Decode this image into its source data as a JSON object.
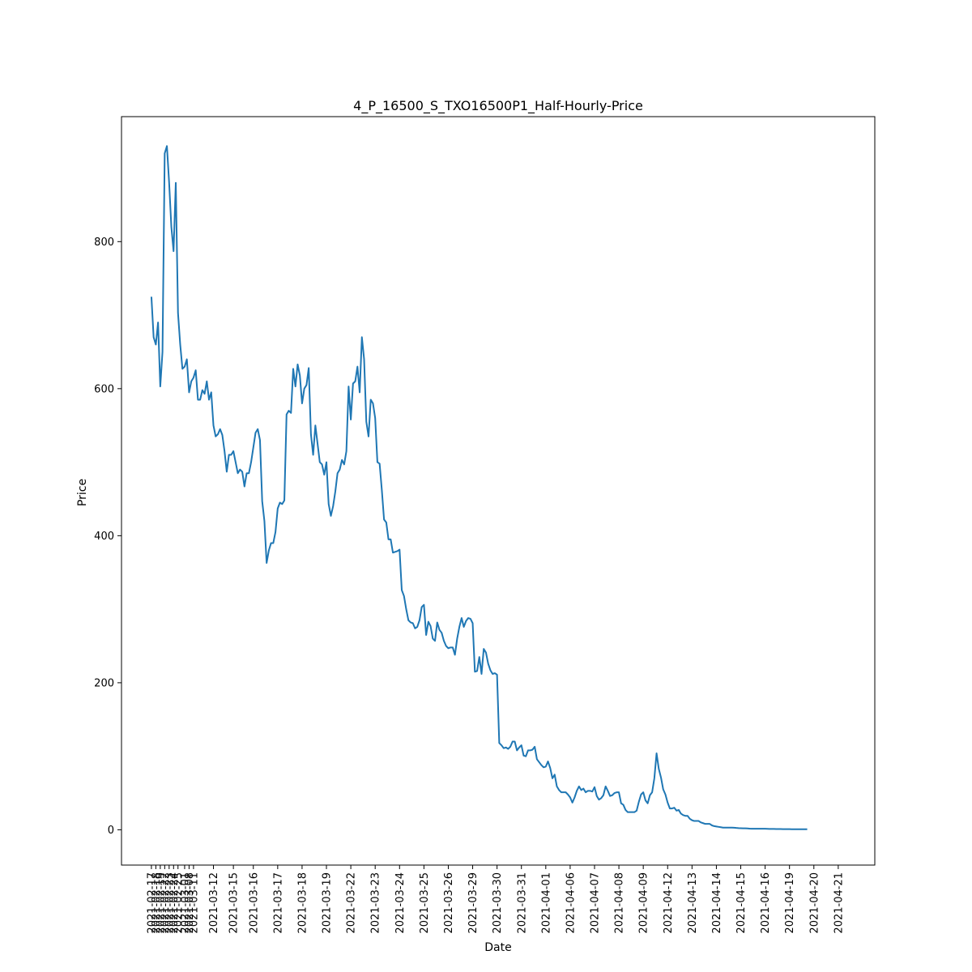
{
  "chart_data": {
    "type": "line",
    "title": "4_P_16500_S_TXO16500P1_Half-Hourly-Price",
    "xlabel": "Date",
    "ylabel": "Price",
    "ylim": [
      -48,
      970
    ],
    "grid": false,
    "line_color": "#1f77b4",
    "y_ticks": [
      0,
      200,
      400,
      600,
      800
    ],
    "x_ticks": [
      {
        "label": "2021-02-17",
        "index": 0
      },
      {
        "label": "2021-02-18",
        "index": 2
      },
      {
        "label": "2021-02-19",
        "index": 4
      },
      {
        "label": "2021-02-22",
        "index": 6
      },
      {
        "label": "2021-02-23",
        "index": 8
      },
      {
        "label": "2021-02-24",
        "index": 10
      },
      {
        "label": "2021-02-25",
        "index": 12
      },
      {
        "label": "2021-03-01",
        "index": 15
      },
      {
        "label": "2021-03-08",
        "index": 17
      },
      {
        "label": "2021-03-11",
        "index": 19
      },
      {
        "label": "2021-03-12",
        "index": 28
      },
      {
        "label": "2021-03-15",
        "index": 37
      },
      {
        "label": "2021-03-16",
        "index": 46
      },
      {
        "label": "2021-03-17",
        "index": 57
      },
      {
        "label": "2021-03-18",
        "index": 68
      },
      {
        "label": "2021-03-19",
        "index": 79
      },
      {
        "label": "2021-03-22",
        "index": 90
      },
      {
        "label": "2021-03-23",
        "index": 101
      },
      {
        "label": "2021-03-24",
        "index": 112
      },
      {
        "label": "2021-03-25",
        "index": 123
      },
      {
        "label": "2021-03-26",
        "index": 134
      },
      {
        "label": "2021-03-29",
        "index": 145
      },
      {
        "label": "2021-03-30",
        "index": 156
      },
      {
        "label": "2021-03-31",
        "index": 167
      },
      {
        "label": "2021-04-01",
        "index": 178
      },
      {
        "label": "2021-04-06",
        "index": 189
      },
      {
        "label": "2021-04-07",
        "index": 200
      },
      {
        "label": "2021-04-08",
        "index": 211
      },
      {
        "label": "2021-04-09",
        "index": 222
      },
      {
        "label": "2021-04-12",
        "index": 233
      },
      {
        "label": "2021-04-13",
        "index": 244
      },
      {
        "label": "2021-04-14",
        "index": 255
      },
      {
        "label": "2021-04-15",
        "index": 266
      },
      {
        "label": "2021-04-16",
        "index": 277
      },
      {
        "label": "2021-04-19",
        "index": 288
      },
      {
        "label": "2021-04-20",
        "index": 299
      },
      {
        "label": "2021-04-21",
        "index": 310
      }
    ],
    "x_index_range": [
      -13.5,
      326.5
    ],
    "series": [
      {
        "values": [
          725,
          670,
          660,
          690,
          603,
          650,
          920,
          930,
          880,
          820,
          787,
          880,
          703,
          660,
          627,
          630,
          640,
          595,
          610,
          615,
          625,
          585,
          585,
          598,
          593,
          610,
          585,
          595,
          550,
          535,
          538,
          545,
          537,
          515,
          487,
          510,
          510,
          515,
          500,
          485,
          490,
          487,
          467,
          485,
          485,
          500,
          520,
          540,
          545,
          530,
          447,
          420,
          363,
          380,
          390,
          390,
          405,
          437,
          445,
          443,
          448,
          565,
          570,
          567,
          627,
          603,
          633,
          618,
          580,
          600,
          605,
          628,
          538,
          510,
          550,
          525,
          500,
          497,
          483,
          500,
          443,
          427,
          440,
          460,
          485,
          490,
          503,
          497,
          515,
          603,
          558,
          607,
          610,
          630,
          595,
          670,
          640,
          555,
          535,
          585,
          580,
          560,
          500,
          498,
          462,
          422,
          418,
          395,
          395,
          377,
          378,
          379,
          381,
          326,
          318,
          300,
          285,
          282,
          281,
          274,
          276,
          285,
          303,
          306,
          265,
          283,
          277,
          260,
          257,
          282,
          272,
          268,
          257,
          250,
          247,
          248,
          248,
          238,
          260,
          276,
          288,
          276,
          284,
          288,
          287,
          281,
          215,
          216,
          235,
          212,
          246,
          241,
          226,
          217,
          212,
          213,
          211,
          118,
          115,
          111,
          112,
          110,
          113,
          120,
          120,
          108,
          112,
          115,
          101,
          100,
          108,
          108,
          109,
          113,
          96,
          92,
          88,
          85,
          86,
          93,
          84,
          70,
          75,
          59,
          54,
          51,
          51,
          51,
          48,
          44,
          37,
          44,
          53,
          59,
          54,
          56,
          51,
          53,
          53,
          52,
          58,
          46,
          41,
          43,
          47,
          59,
          53,
          46,
          47,
          50,
          51,
          51,
          36,
          34,
          27,
          24,
          24,
          24,
          24,
          26,
          38,
          48,
          51,
          40,
          36,
          47,
          51,
          70,
          104,
          83,
          71,
          55,
          48,
          37,
          29,
          29,
          30,
          26,
          27,
          22,
          20,
          19,
          19,
          15,
          13,
          12,
          12,
          12,
          10,
          9,
          8,
          8,
          8,
          6,
          5,
          4.5,
          4,
          3.5,
          3,
          3,
          3,
          3,
          3,
          2.8,
          2.5,
          2.3,
          2.2,
          2,
          2,
          1.8,
          1.6,
          1.5,
          1.5,
          1.5,
          1.4,
          1.4,
          1.4,
          1.4,
          1.3,
          1.2,
          1.1,
          1.1,
          1.0,
          1.0,
          1.0,
          0.9,
          0.9,
          0.9,
          0.9,
          0.8,
          0.8,
          0.8,
          0.8,
          0.8,
          0.8,
          0.7,
          0.7
        ]
      }
    ]
  }
}
